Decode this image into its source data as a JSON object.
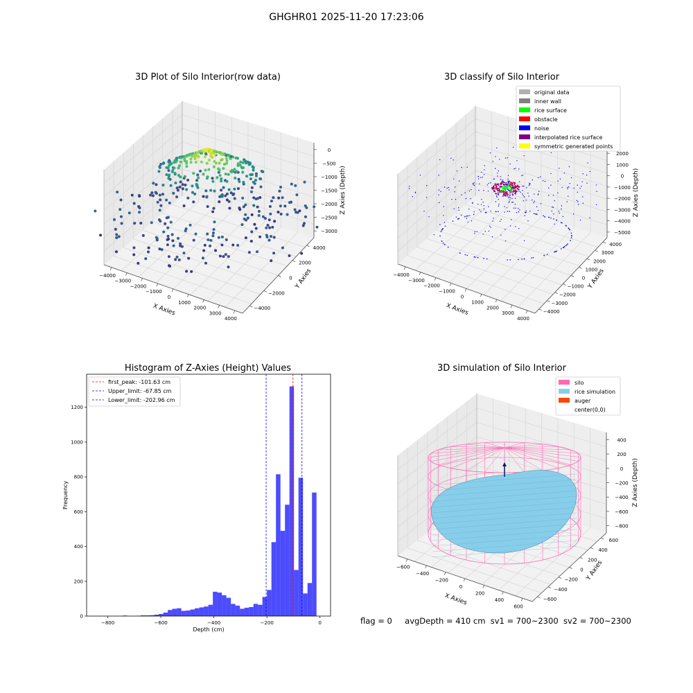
{
  "suptitle": "GHGHR01 2025-11-20 17:23:06",
  "panels": {
    "raw": {
      "title": "3D Plot of Silo Interior(row data)",
      "xlabel": "X Axies",
      "ylabel": "Y Axies",
      "zlabel": "Z Axies (Depth)",
      "xticks": [
        "−4000",
        "−3000",
        "−2000",
        "−1000",
        "0",
        "1000",
        "2000",
        "3000",
        "4000"
      ],
      "yticks": [
        "−4000",
        "−2000",
        "0",
        "2000",
        "4000"
      ],
      "zticks": [
        "0",
        "−500",
        "−1000",
        "−1500",
        "−2000",
        "−2500",
        "−3000"
      ]
    },
    "classify": {
      "title": "3D classify of Silo Interior",
      "xlabel": "X Axies",
      "ylabel": "Y Axies",
      "zlabel": "Z Axies (Depth)",
      "xticks": [
        "−4000",
        "−3000",
        "−2000",
        "−1000",
        "0",
        "1000",
        "2000",
        "3000",
        "4000"
      ],
      "yticks": [
        "−4000",
        "−3000",
        "−2000",
        "−1000",
        "0",
        "1000",
        "2000",
        "3000",
        "4000"
      ],
      "zticks": [
        "2000",
        "1000",
        "0",
        "−1000",
        "−2000",
        "−3000",
        "−4000",
        "−5000"
      ],
      "legend": [
        {
          "label": "original data",
          "color": "#b0b0b0"
        },
        {
          "label": "inner wall",
          "color": "#808080"
        },
        {
          "label": "rice surface",
          "color": "#00ff00"
        },
        {
          "label": "obstacle",
          "color": "#ff0000"
        },
        {
          "label": "noise",
          "color": "#0000ff"
        },
        {
          "label": "interpolated rice surface",
          "color": "#800080"
        },
        {
          "label": "symmetric generated points",
          "color": "#ffff00"
        }
      ]
    },
    "simulation": {
      "title": "3D simulation of Silo Interior",
      "xlabel": "X Axies",
      "ylabel": "Y Axies",
      "zlabel": "Z Axies (Depth)",
      "xticks": [
        "−600",
        "−400",
        "−200",
        "0",
        "200",
        "400",
        "600"
      ],
      "yticks": [
        "−600",
        "−400",
        "−200",
        "0",
        "200",
        "400",
        "600"
      ],
      "zticks": [
        "400",
        "200",
        "0",
        "−200",
        "−400",
        "−600",
        "−800"
      ],
      "legend": [
        {
          "label": "silo",
          "color": "#ff69b4"
        },
        {
          "label": "rice simulation",
          "color": "#87ceeb"
        },
        {
          "label": "auger",
          "color": "#ff4500"
        },
        {
          "label": "center(0,0)",
          "color": "#ffffff"
        }
      ]
    }
  },
  "chart_data": [
    {
      "type": "scatter",
      "title": "3D Plot of Silo Interior(row data)",
      "xlabel": "X Axies",
      "ylabel": "Y Axies",
      "zlabel": "Z Axies (Depth)",
      "xlim": [
        -4000,
        4000
      ],
      "ylim": [
        -4000,
        4000
      ],
      "zlim": [
        -3000,
        0
      ],
      "colormap": "viridis"
    },
    {
      "type": "scatter",
      "title": "3D classify of Silo Interior",
      "xlabel": "X Axies",
      "ylabel": "Y Axies",
      "zlabel": "Z Axies (Depth)",
      "xlim": [
        -4000,
        4000
      ],
      "ylim": [
        -4000,
        4000
      ],
      "zlim": [
        -5000,
        2000
      ],
      "legend_position": "top-right"
    },
    {
      "type": "bar",
      "title": "Histogram of Z-Axies (Height) Values",
      "xlabel": "Depth (cm)",
      "ylabel": "Frequency",
      "xlim": [
        -880,
        40
      ],
      "ylim": [
        0,
        1390
      ],
      "xticks": [
        -800,
        -600,
        -400,
        -200,
        0
      ],
      "yticks": [
        0,
        200,
        400,
        600,
        800,
        1000,
        1200
      ],
      "bin_width": 17,
      "bin_start": -744,
      "values": [
        3,
        0,
        0,
        2,
        4,
        4,
        5,
        8,
        12,
        20,
        35,
        42,
        45,
        30,
        32,
        38,
        45,
        50,
        55,
        65,
        140,
        135,
        120,
        105,
        70,
        60,
        42,
        48,
        52,
        70,
        65,
        110,
        150,
        425,
        815,
        490,
        640,
        1320,
        265,
        795,
        130,
        190,
        710
      ],
      "bar_color": "#0000ff",
      "lines": [
        {
          "label": "first_peak: -101.63 cm",
          "x": -101.63,
          "color": "#ff0000"
        },
        {
          "label": "Upper_limit: -67.85 cm",
          "x": -67.85,
          "color": "#0000ff"
        },
        {
          "label": "Lower_limit: -202.96 cm",
          "x": -202.96,
          "color": "#0000ff"
        }
      ],
      "legend_position": "top-left"
    },
    {
      "type": "surface",
      "title": "3D simulation of Silo Interior",
      "xlabel": "X Axies",
      "ylabel": "Y Axies",
      "zlabel": "Z Axies (Depth)",
      "xlim": [
        -700,
        700
      ],
      "ylim": [
        -700,
        700
      ],
      "zlim": [
        -900,
        450
      ],
      "legend_position": "top-right"
    }
  ],
  "status": {
    "flag": "flag = 0",
    "avg_depth": "avgDepth = 410 cm",
    "sv1": "sv1 = 700~2300",
    "sv2": "sv2 = 700~2300"
  }
}
